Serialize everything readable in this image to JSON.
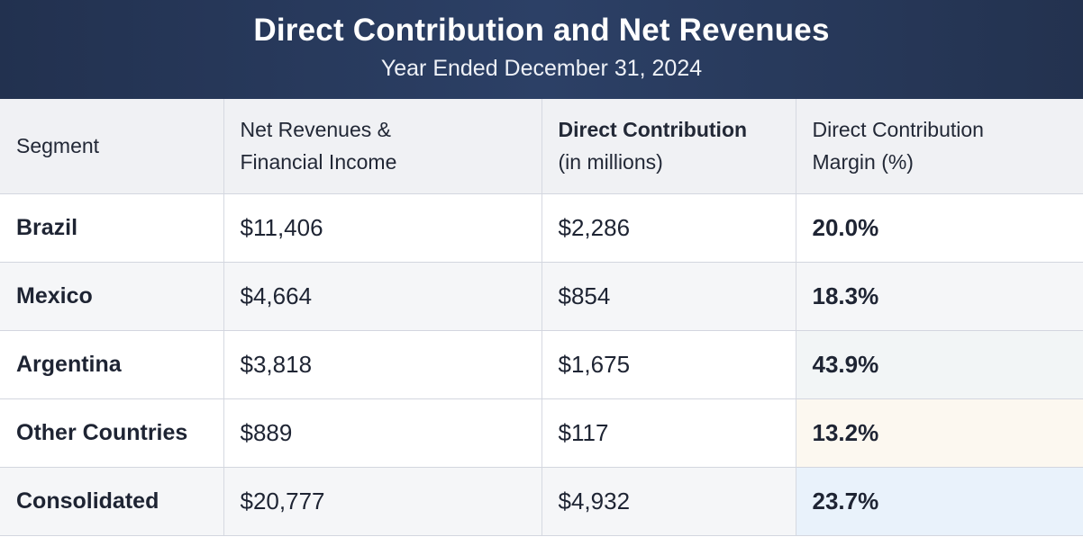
{
  "title": "Direct Contribution and Net Revenues",
  "subtitle": "Year Ended December 31, 2024",
  "columns": [
    "Segment",
    "Net Revenues & Financial Income",
    "Direct Contribution (in millions)",
    "Direct Contribution Margin (%)"
  ],
  "column_lines": [
    [
      "Segment"
    ],
    [
      "Net Revenues &",
      "Financial Income"
    ],
    [
      "Direct Contribution",
      "(in millions)"
    ],
    [
      "Direct Contribution",
      "Margin (%)"
    ]
  ],
  "rows": [
    {
      "segment": "Brazil",
      "revenue": "$11,406",
      "contribution": "$2,286",
      "margin": "20.0%"
    },
    {
      "segment": "Mexico",
      "revenue": "$4,664",
      "contribution": "$854",
      "margin": "18.3%"
    },
    {
      "segment": "Argentina",
      "revenue": "$3,818",
      "contribution": "$1,675",
      "margin": "43.9%"
    },
    {
      "segment": "Other Countries",
      "revenue": "$889",
      "contribution": "$117",
      "margin": "13.2%"
    },
    {
      "segment": "Consolidated",
      "revenue": "$20,777",
      "contribution": "$4,932",
      "margin": "23.7%"
    }
  ]
}
